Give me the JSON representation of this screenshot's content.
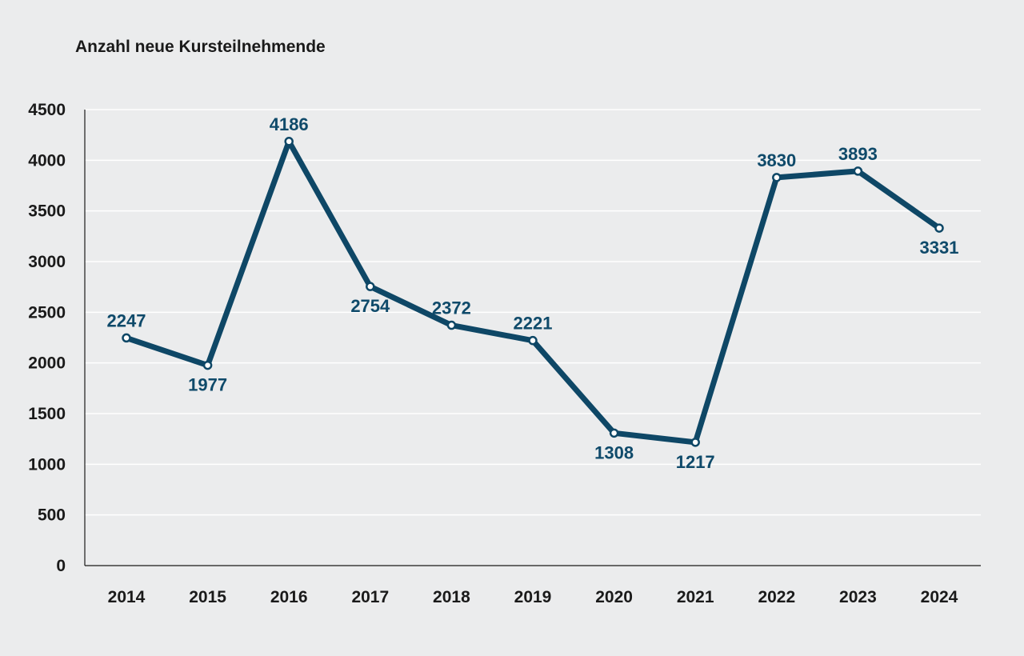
{
  "chart_data": {
    "type": "line",
    "title": "Anzahl neue Kursteilnehmende",
    "xlabel": "",
    "ylabel": "",
    "categories": [
      "2014",
      "2015",
      "2016",
      "2017",
      "2018",
      "2019",
      "2020",
      "2021",
      "2022",
      "2023",
      "2024"
    ],
    "series": [
      {
        "values": [
          2247,
          1977,
          4186,
          2754,
          2372,
          2221,
          1308,
          1217,
          3830,
          3893,
          3331
        ]
      }
    ],
    "data_labels": [
      "2247",
      "1977",
      "4186",
      "2754",
      "2372",
      "2221",
      "1308",
      "1217",
      "3830",
      "3893",
      "3331"
    ],
    "label_positions": [
      "above",
      "below",
      "above",
      "below",
      "above",
      "above",
      "below",
      "below",
      "above",
      "above",
      "below"
    ],
    "ylim": [
      0,
      4500
    ],
    "yticks": [
      0,
      500,
      1000,
      1500,
      2000,
      2500,
      3000,
      3500,
      4000,
      4500
    ],
    "ytick_labels": [
      "0",
      "500",
      "1000",
      "1500",
      "2000",
      "2500",
      "3000",
      "3500",
      "4000",
      "4500"
    ],
    "grid": true,
    "legend": "none",
    "colors": {
      "line": "#0e4766",
      "label": "#0f4a6a",
      "background": "#ebeced",
      "grid": "#ffffff"
    }
  }
}
